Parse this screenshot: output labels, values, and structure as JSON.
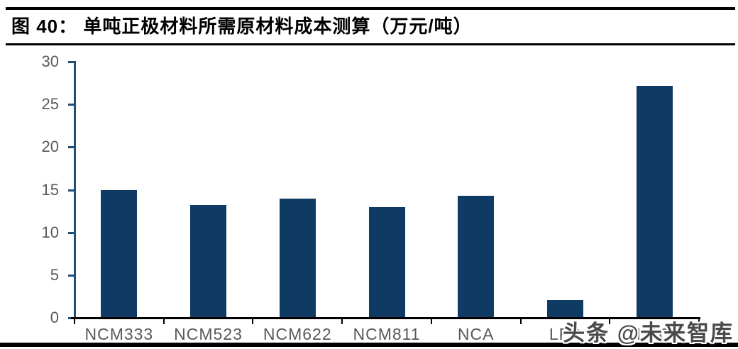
{
  "header": {
    "title": "图 40： 单吨正极材料所需原材料成本测算（万元/吨）"
  },
  "watermark": {
    "text": "头条 @未来智库"
  },
  "chart_data": {
    "type": "bar",
    "title": "单吨正极材料所需原材料成本测算（万元/吨）",
    "categories": [
      "NCM333",
      "NCM523",
      "NCM622",
      "NCM811",
      "NCA",
      "LFP",
      "LCO"
    ],
    "values": [
      15.0,
      13.2,
      14.0,
      13.0,
      14.3,
      2.1,
      27.2
    ],
    "xlabel": "",
    "ylabel": "",
    "ylim": [
      0,
      30
    ],
    "yticks": [
      0,
      5,
      10,
      15,
      20,
      25,
      30
    ],
    "grid": false,
    "legend": "none",
    "bar_color": "#0e3a63",
    "y_axis_line_color": "#1f4e79",
    "x_axis_line_color": "#000000",
    "axis_label_color": "#595959"
  }
}
